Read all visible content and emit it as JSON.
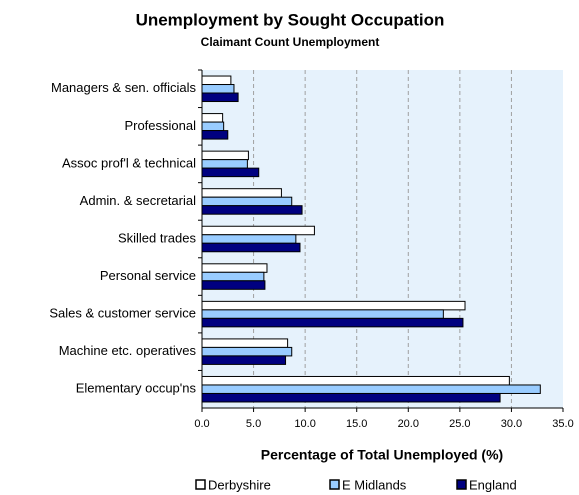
{
  "chart_data": {
    "type": "bar",
    "orientation": "horizontal",
    "title": "Unemployment by Sought Occupation",
    "subtitle": "Claimant Count Unemployment",
    "x_label": "Percentage of Total Unemployed (%)",
    "categories": [
      "Managers & sen. officials",
      "Professional",
      "Assoc prof'l & technical",
      "Admin. & secretarial",
      "Skilled trades",
      "Personal service",
      "Sales & customer service",
      "Machine etc. operatives",
      "Elementary occup'ns"
    ],
    "series": [
      {
        "name": "Derbyshire",
        "color": "#ffffff",
        "values": [
          2.8,
          2.0,
          4.5,
          7.7,
          10.9,
          6.3,
          25.5,
          8.3,
          29.8
        ]
      },
      {
        "name": "E Midlands",
        "color": "#99ccff",
        "values": [
          3.1,
          2.1,
          4.4,
          8.7,
          9.1,
          6.0,
          23.4,
          8.7,
          32.8
        ]
      },
      {
        "name": "England",
        "color": "#000080",
        "values": [
          3.5,
          2.5,
          5.5,
          9.7,
          9.5,
          6.1,
          25.3,
          8.1,
          28.9
        ]
      }
    ],
    "xlim": [
      0,
      35
    ],
    "xticks": [
      {
        "value": 0,
        "label": "0.0"
      },
      {
        "value": 5,
        "label": "5.0"
      },
      {
        "value": 10,
        "label": "10.0"
      },
      {
        "value": 15,
        "label": "15.0"
      },
      {
        "value": 20,
        "label": "20.0"
      },
      {
        "value": 25,
        "label": "25.0"
      },
      {
        "value": 30,
        "label": "30.0"
      },
      {
        "value": 35,
        "label": "35.0"
      }
    ],
    "grid": true,
    "legend": "bottom"
  }
}
